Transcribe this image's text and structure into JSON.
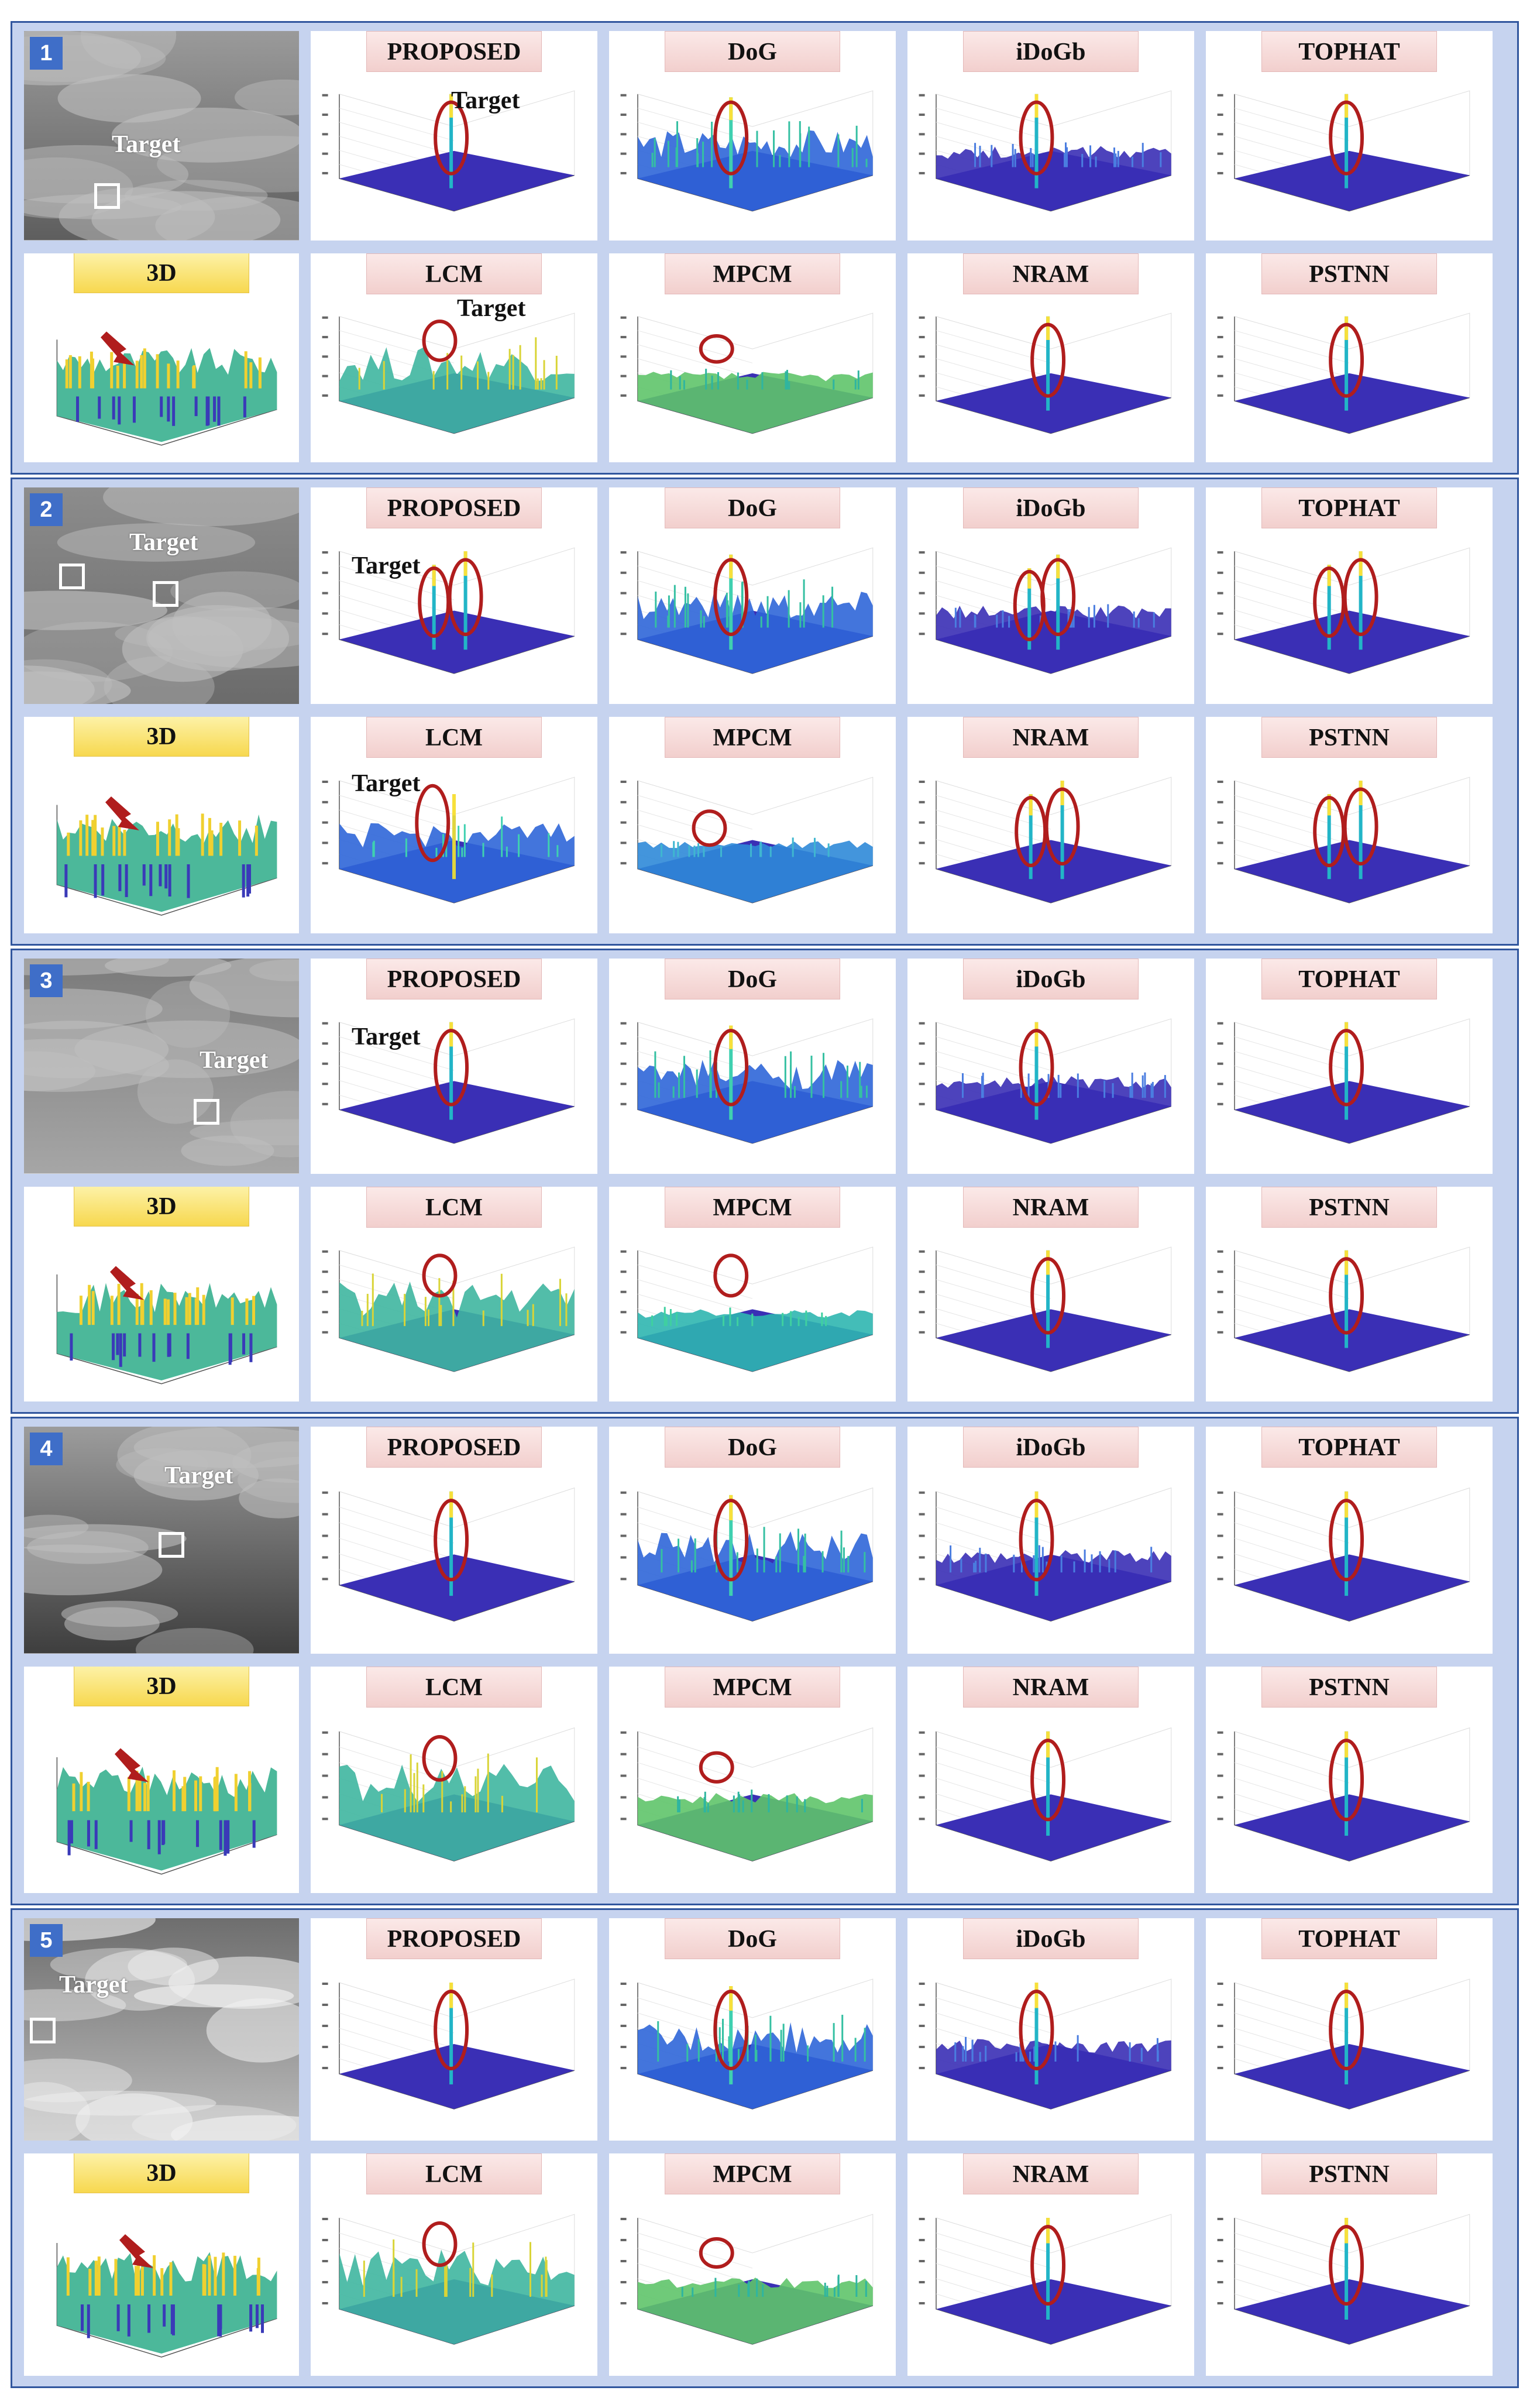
{
  "groups": [
    {
      "number": "1",
      "photo_target": "Target",
      "top_labels": [
        "PROPOSED",
        "DoG",
        "iDoGb",
        "TOPHAT"
      ],
      "bottom_labels": [
        "3D",
        "LCM",
        "MPCM",
        "NRAM",
        "PSTNN"
      ],
      "target_annotations": {
        "proposed": "Target",
        "lcm": "Target"
      }
    },
    {
      "number": "2",
      "photo_target": "Target",
      "top_labels": [
        "PROPOSED",
        "DoG",
        "iDoGb",
        "TOPHAT"
      ],
      "bottom_labels": [
        "3D",
        "LCM",
        "MPCM",
        "NRAM",
        "PSTNN"
      ],
      "target_annotations": {
        "proposed": "Target",
        "lcm": "Target"
      }
    },
    {
      "number": "3",
      "photo_target": "Target",
      "top_labels": [
        "PROPOSED",
        "DoG",
        "iDoGb",
        "TOPHAT"
      ],
      "bottom_labels": [
        "3D",
        "LCM",
        "MPCM",
        "NRAM",
        "PSTNN"
      ],
      "target_annotations": {
        "proposed": "Target"
      }
    },
    {
      "number": "4",
      "photo_target": "Target",
      "top_labels": [
        "PROPOSED",
        "DoG",
        "iDoGb",
        "TOPHAT"
      ],
      "bottom_labels": [
        "3D",
        "LCM",
        "MPCM",
        "NRAM",
        "PSTNN"
      ],
      "target_annotations": {}
    },
    {
      "number": "5",
      "photo_target": "Target",
      "top_labels": [
        "PROPOSED",
        "DoG",
        "iDoGb",
        "TOPHAT"
      ],
      "bottom_labels": [
        "3D",
        "LCM",
        "MPCM",
        "NRAM",
        "PSTNN"
      ],
      "target_annotations": {}
    }
  ],
  "colors": {
    "frame_border": "#31569e",
    "frame_fill": "#c6d3ef",
    "label_pink": "#f2cfcd",
    "label_yellow": "#f7d84f",
    "number_badge": "#3f6ec8",
    "target_ring": "#b01d1d",
    "surface_base": "#3a2fb5",
    "arrow": "#b01d1d"
  }
}
